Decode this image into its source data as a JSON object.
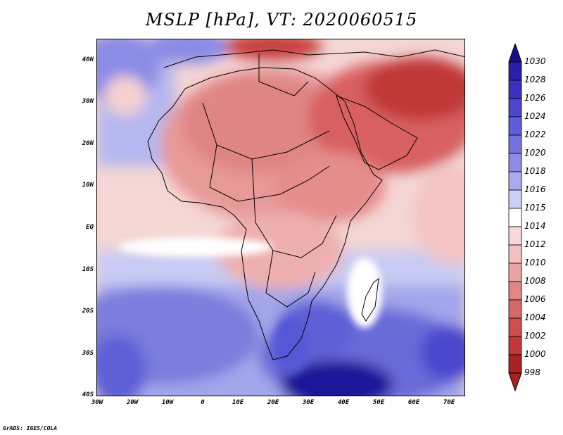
{
  "title": "MSLP [hPa], VT: 2020060515",
  "map": {
    "variable": "MSLP",
    "units": "hPa",
    "valid_time": "2020060515",
    "lat_labels": [
      "40N",
      "30N",
      "20N",
      "10N",
      "EQ",
      "10S",
      "20S",
      "30S",
      "40S"
    ],
    "lon_labels": [
      "30W",
      "20W",
      "10W",
      "0",
      "10E",
      "20E",
      "30E",
      "40E",
      "50E",
      "60E",
      "70E"
    ]
  },
  "colorbar": {
    "levels": [
      "1030",
      "1028",
      "1026",
      "1024",
      "1022",
      "1020",
      "1018",
      "1016",
      "1015",
      "1014",
      "1012",
      "1010",
      "1008",
      "1006",
      "1004",
      "1002",
      "1000",
      "998"
    ],
    "colors": [
      "#1a0e8a",
      "#2a1fa8",
      "#3a31bf",
      "#4b46cc",
      "#5e5ed6",
      "#7373de",
      "#8c8ce6",
      "#a9abef",
      "#cdd0f6",
      "#ffffff",
      "#f7d8d8",
      "#f2c0bf",
      "#eaa3a2",
      "#e28685",
      "#d96868",
      "#d04d4d",
      "#c13838",
      "#a82222"
    ],
    "top_arrow_color": "#1a0e8a",
    "bottom_arrow_color": "#a82222"
  },
  "footer": "GrADS: IGES/COLA"
}
